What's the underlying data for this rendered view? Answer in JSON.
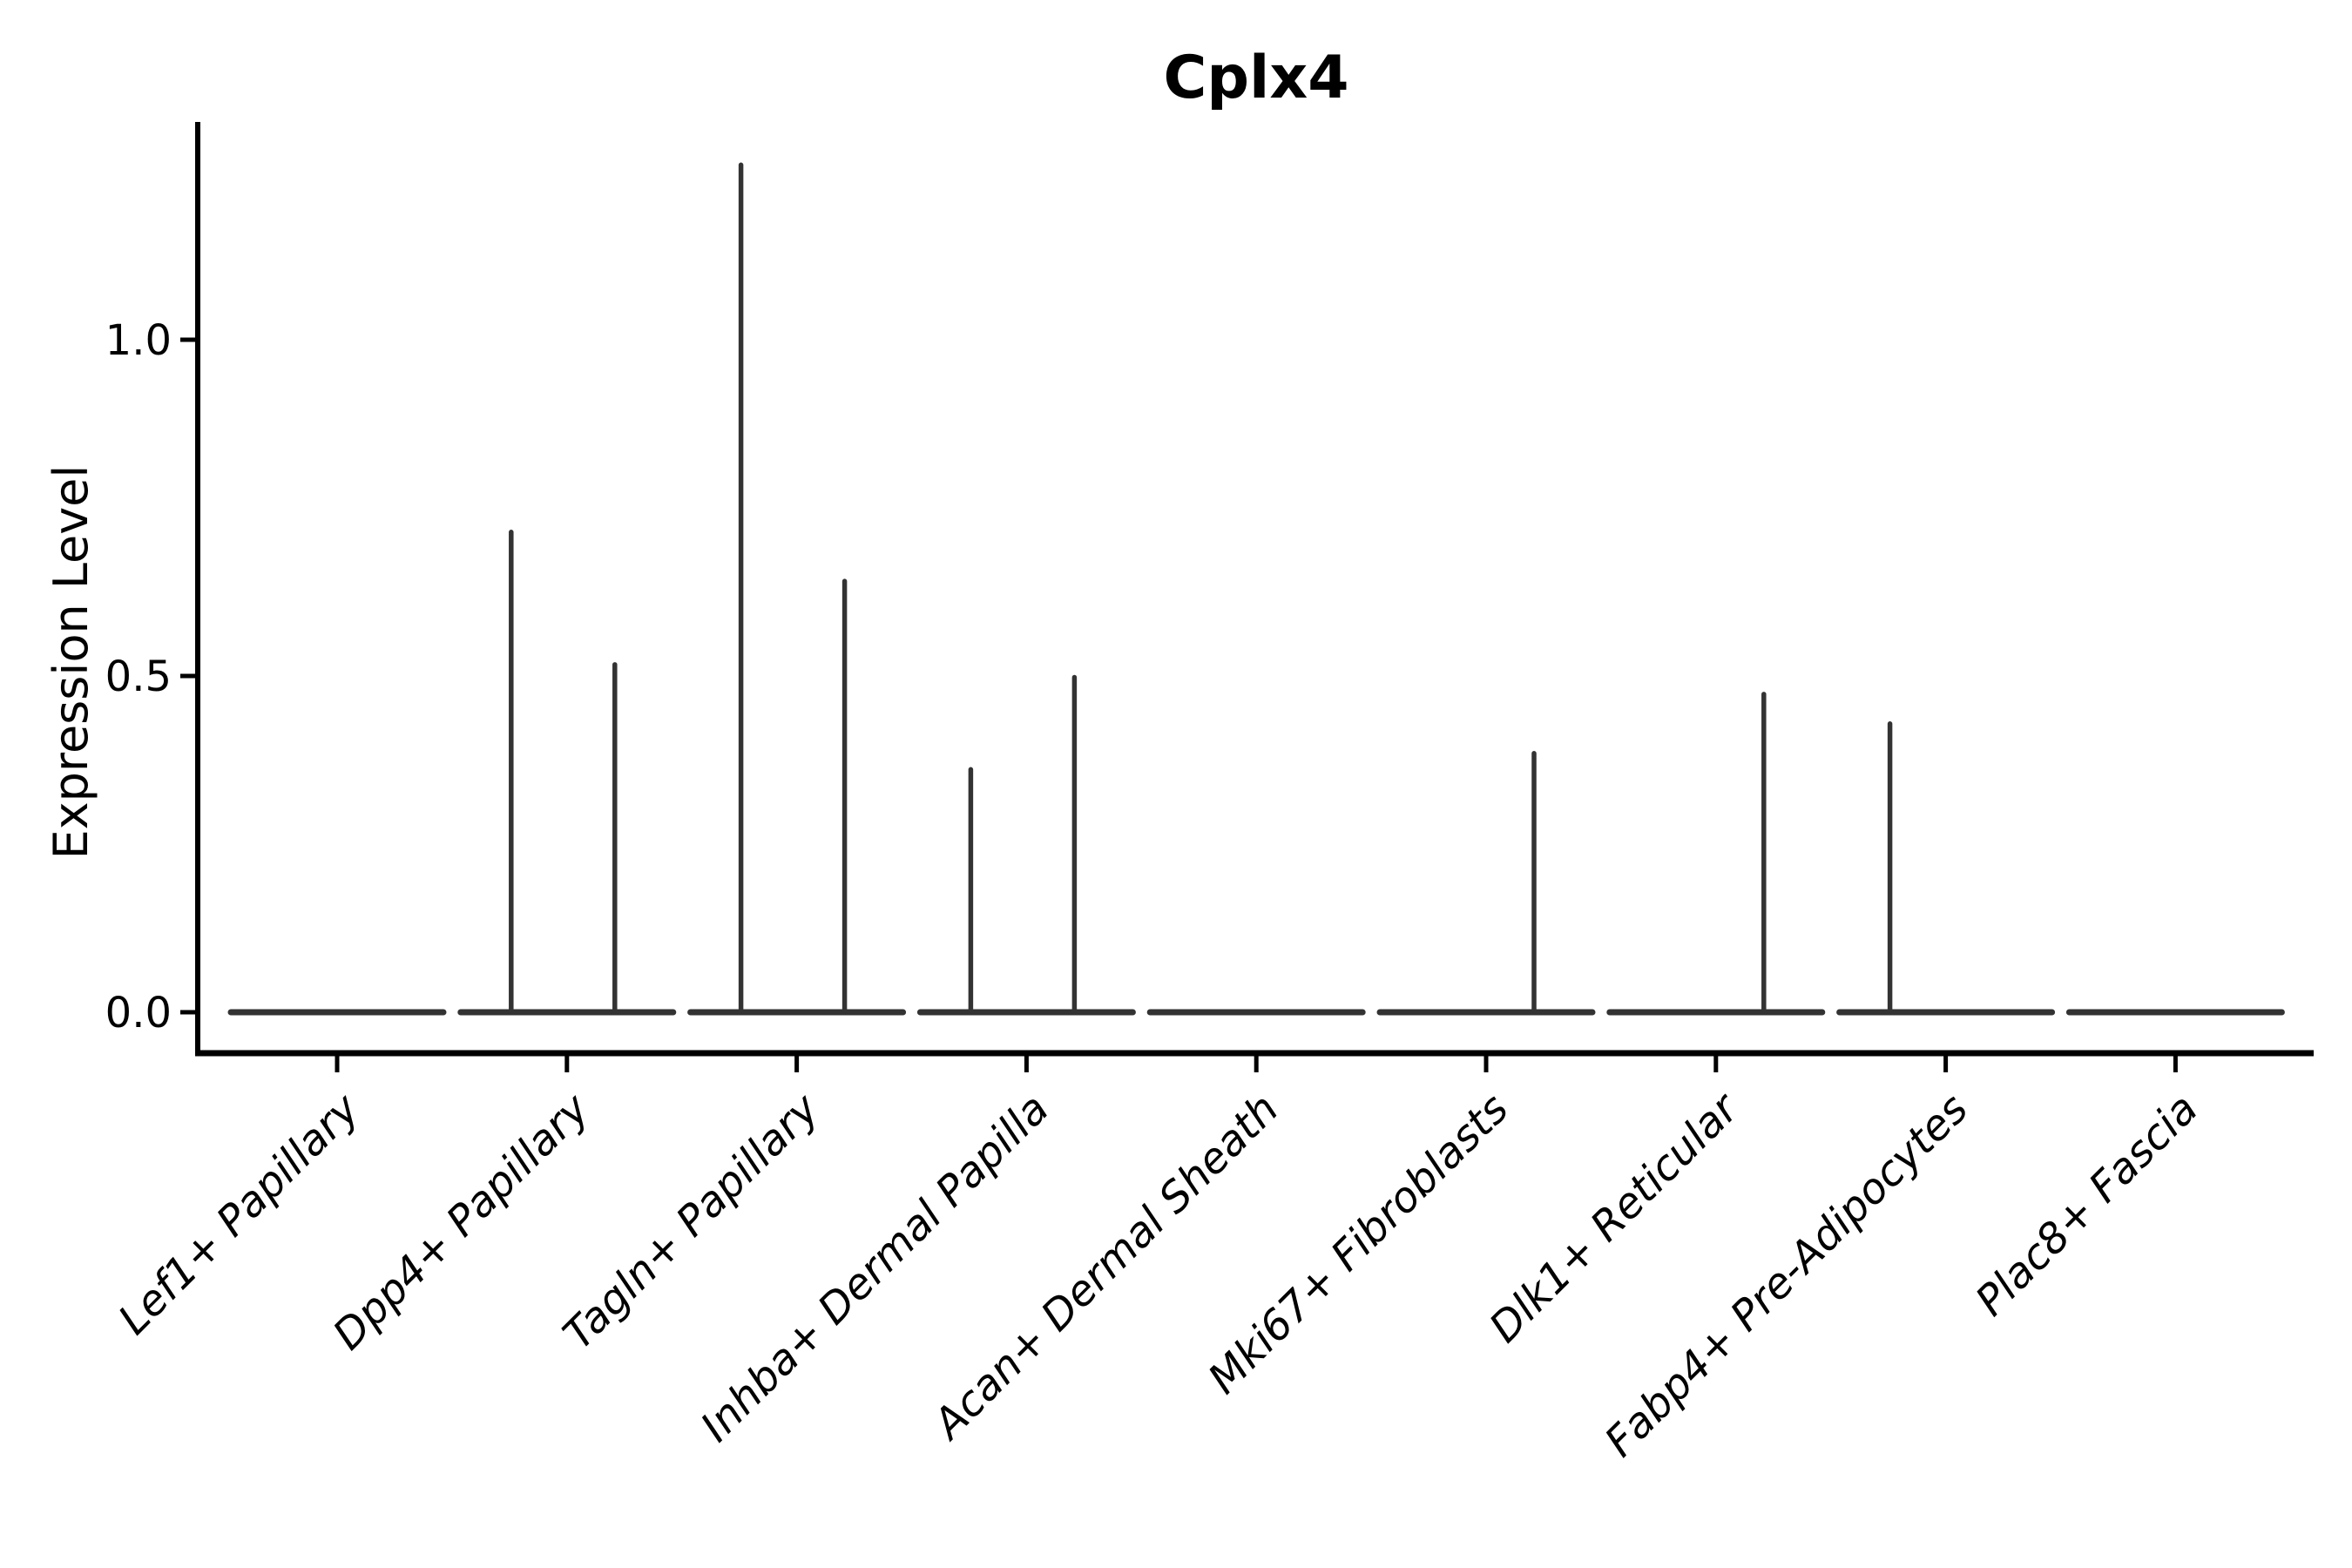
{
  "chart_data": {
    "type": "violin",
    "title": "Cplx4",
    "xlabel": "",
    "ylabel": "Expression Level",
    "yticks": [
      {
        "label": "1.0",
        "value": 1.0
      },
      {
        "label": "0.5",
        "value": 0.5
      },
      {
        "label": "0.0",
        "value": 0.0
      }
    ],
    "ylim": [
      -0.061,
      1.324
    ],
    "grid": false,
    "legend": null,
    "categories": [
      "Lef1+ Papillary",
      "Dpp4+ Papillary",
      "Tagln+ Papillary",
      "Inhba+ Dermal Papilla",
      "Acan+ Dermal Sheath",
      "Mki67+ Fibroblasts",
      "Dlk1+ Reticular",
      "Fabp4+ Pre-Adipocytes",
      "Plac8+ Fascia"
    ],
    "violins": [
      {
        "category": "Lef1+ Papillary",
        "baseline_value": 0.0,
        "spikes": []
      },
      {
        "category": "Dpp4+ Papillary",
        "baseline_value": 0.0,
        "spikes": [
          {
            "side": "left",
            "value": 0.714
          },
          {
            "side": "right",
            "value": 0.517
          }
        ]
      },
      {
        "category": "Tagln+ Papillary",
        "baseline_value": 0.0,
        "spikes": [
          {
            "side": "left",
            "value": 1.26
          },
          {
            "side": "right",
            "value": 0.641
          }
        ]
      },
      {
        "category": "Inhba+ Dermal Papilla",
        "baseline_value": 0.0,
        "spikes": [
          {
            "side": "left",
            "value": 0.361
          },
          {
            "side": "right",
            "value": 0.498
          }
        ]
      },
      {
        "category": "Acan+ Dermal Sheath",
        "baseline_value": 0.0,
        "spikes": []
      },
      {
        "category": "Mki67+ Fibroblasts",
        "baseline_value": 0.0,
        "spikes": [
          {
            "side": "right",
            "value": 0.385
          }
        ]
      },
      {
        "category": "Dlk1+ Reticular",
        "baseline_value": 0.0,
        "spikes": [
          {
            "side": "right",
            "value": 0.473
          }
        ]
      },
      {
        "category": "Fabp4+ Pre-Adipocytes",
        "baseline_value": 0.0,
        "spikes": [
          {
            "side": "left",
            "value": 0.429
          }
        ]
      },
      {
        "category": "Plac8+ Fascia",
        "baseline_value": 0.0,
        "spikes": []
      }
    ],
    "colors": {
      "violin_stroke": "#333333",
      "axis": "#000000",
      "text": "#000000",
      "background": "#ffffff"
    }
  }
}
